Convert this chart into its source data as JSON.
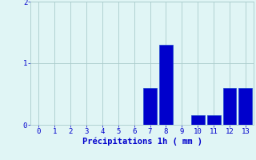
{
  "x_values": [
    0,
    1,
    2,
    3,
    4,
    5,
    6,
    7,
    8,
    9,
    10,
    11,
    12,
    13
  ],
  "bar_heights": [
    0,
    0,
    0,
    0,
    0,
    0,
    0,
    0.6,
    1.3,
    0,
    0.15,
    0.15,
    0.6,
    0.6
  ],
  "bar_color": "#0000cc",
  "bar_edge_color": "#1a44cc",
  "background_color": "#e0f5f5",
  "grid_color": "#aacccc",
  "xlabel": "Précipitations 1h ( mm )",
  "xlabel_color": "#0000cc",
  "tick_color": "#0000cc",
  "ylim": [
    0,
    2
  ],
  "xlim": [
    -0.5,
    13.5
  ],
  "yticks": [
    0,
    1,
    2
  ],
  "xticks": [
    0,
    1,
    2,
    3,
    4,
    5,
    6,
    7,
    8,
    9,
    10,
    11,
    12,
    13
  ],
  "bar_width": 0.85,
  "tick_fontsize": 6.5,
  "xlabel_fontsize": 7.5
}
